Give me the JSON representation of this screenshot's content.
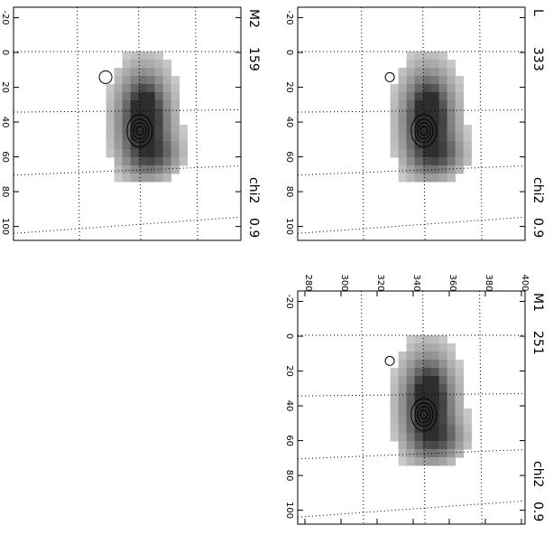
{
  "panels": [
    {
      "label": "L",
      "count": "333",
      "stat_label": "chi2",
      "stat": "0.9",
      "xlim": [
        -26,
        108
      ],
      "xticks": [
        -20,
        0,
        20,
        40,
        60,
        80,
        100
      ],
      "ylim": [
        276,
        402
      ]
    },
    {
      "label": "M2",
      "count": "159",
      "stat_label": "chi2",
      "stat": "0.9",
      "xlim": [
        -26,
        108
      ],
      "xticks": [
        -20,
        0,
        20,
        40,
        60,
        80,
        100
      ],
      "ylim": [
        276,
        402
      ]
    },
    {
      "label": "M1",
      "count": "251",
      "stat_label": "chi2",
      "stat": "0.9",
      "xlim": [
        -26,
        108
      ],
      "xticks": [
        -20,
        0,
        20,
        40,
        60,
        80,
        100
      ],
      "ylim": [
        276,
        402
      ],
      "yticks": [
        280,
        300,
        320,
        340,
        360,
        380,
        400
      ]
    }
  ]
}
